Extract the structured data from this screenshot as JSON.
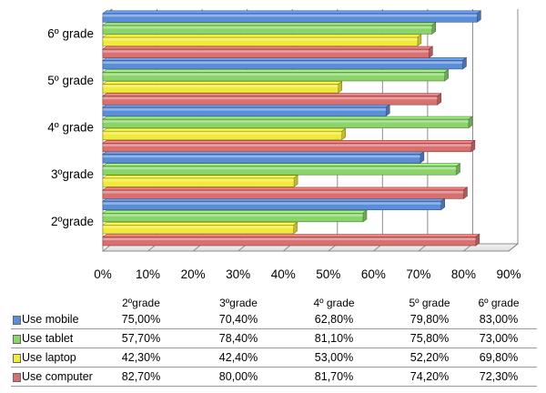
{
  "chart_data": {
    "type": "bar",
    "orientation": "horizontal",
    "style": "3d-clustered",
    "categories": [
      "2ºgrade",
      "3ºgrade",
      "4º grade",
      "5º grade",
      "6º grade"
    ],
    "series": [
      {
        "name": "Use mobile",
        "color": "#5b8ed8",
        "values": [
          75.0,
          70.4,
          62.8,
          79.8,
          83.0
        ],
        "labels": [
          "75,00%",
          "70,40%",
          "62,80%",
          "79,80%",
          "83,00%"
        ]
      },
      {
        "name": "Use tablet",
        "color": "#8ad46a",
        "values": [
          57.7,
          78.4,
          81.1,
          75.8,
          73.0
        ],
        "labels": [
          "57,70%",
          "78,40%",
          "81,10%",
          "75,80%",
          "73,00%"
        ]
      },
      {
        "name": "Use laptop",
        "color": "#f2ea3a",
        "values": [
          42.3,
          42.4,
          53.0,
          52.2,
          69.8
        ],
        "labels": [
          "42,30%",
          "42,40%",
          "53,00%",
          "52,20%",
          "69,80%"
        ]
      },
      {
        "name": "Use computer",
        "color": "#d97070",
        "values": [
          82.7,
          80.0,
          81.7,
          74.2,
          72.3
        ],
        "labels": [
          "82,70%",
          "80,00%",
          "81,70%",
          "74,20%",
          "72,30%"
        ]
      }
    ],
    "xlim": [
      0,
      90
    ],
    "xticks": [
      "0%",
      "10%",
      "20%",
      "30%",
      "40%",
      "50%",
      "60%",
      "70%",
      "80%",
      "90%"
    ],
    "grid": true,
    "legend": "data-table-below"
  },
  "table": {
    "headers": [
      "2ºgrade",
      "3ºgrade",
      "4º grade",
      "5º grade",
      "6º grade"
    ]
  }
}
